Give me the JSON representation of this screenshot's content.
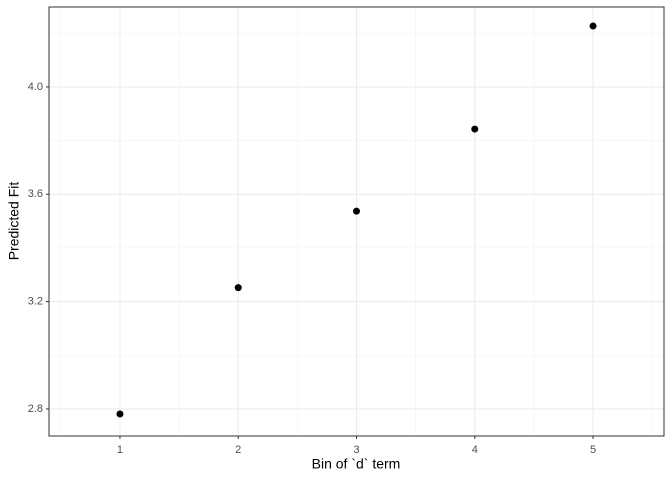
{
  "chart_data": {
    "type": "scatter",
    "x_label": "Bin of `d` term",
    "y_label": "Predicted Fit",
    "x": [
      1,
      2,
      3,
      4,
      5
    ],
    "values": [
      2.781,
      3.252,
      3.537,
      3.843,
      4.227
    ],
    "color": "#000000",
    "xlim": [
      0.4,
      5.6
    ],
    "ylim": [
      2.699,
      4.298
    ],
    "xticks": [
      1,
      2,
      3,
      4,
      5
    ],
    "yticks": [
      2.8,
      3.2,
      3.6,
      {
        "value": 4,
        "label": "4.0"
      }
    ],
    "grid": true
  }
}
